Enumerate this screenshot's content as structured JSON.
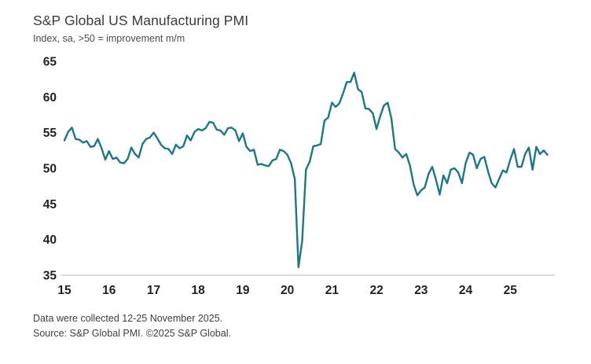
{
  "header": {
    "title": "S&P Global US Manufacturing PMI",
    "subtitle": "Index, sa, >50 = improvement m/m"
  },
  "footer": {
    "line1": "Data were collected 12-25 November 2025.",
    "line2": "Source: S&P Global PMI. ©2025 S&P Global."
  },
  "chart_data": {
    "type": "line",
    "title": "S&P Global US Manufacturing PMI",
    "subtitle": "Index, sa, >50 = improvement m/m",
    "x_start": "2015-01",
    "x_end": "2025-11",
    "x_tick_labels": [
      "15",
      "16",
      "17",
      "18",
      "19",
      "20",
      "21",
      "22",
      "23",
      "24",
      "25"
    ],
    "y_ticks": [
      35,
      40,
      45,
      50,
      55,
      60,
      65
    ],
    "ylim": [
      35,
      65
    ],
    "grid": false,
    "legend": "none",
    "line_color": "#1a7888",
    "axis_color": "#b9b9b9",
    "tick_label_color": "#222222",
    "series": [
      {
        "name": "US Manufacturing PMI (monthly, Jan 2015 - Nov 2025)",
        "values": [
          53.9,
          55.1,
          55.7,
          54.1,
          54.0,
          53.6,
          53.8,
          53.0,
          53.1,
          54.1,
          52.8,
          51.2,
          52.4,
          51.3,
          51.5,
          50.8,
          50.7,
          51.3,
          52.9,
          52.0,
          51.5,
          53.4,
          54.1,
          54.3,
          55.0,
          54.2,
          53.3,
          52.8,
          52.7,
          52.0,
          53.3,
          52.8,
          53.1,
          54.6,
          53.9,
          55.1,
          55.5,
          55.3,
          55.6,
          56.5,
          56.4,
          55.4,
          55.3,
          54.7,
          55.6,
          55.7,
          55.3,
          53.8,
          54.9,
          53.0,
          52.4,
          52.6,
          50.5,
          50.6,
          50.4,
          50.3,
          51.1,
          51.3,
          52.6,
          52.4,
          51.9,
          50.7,
          48.5,
          36.1,
          39.8,
          49.8,
          50.9,
          53.1,
          53.2,
          53.4,
          56.7,
          57.1,
          59.2,
          58.6,
          59.1,
          60.5,
          62.1,
          62.1,
          63.4,
          61.1,
          60.7,
          58.4,
          58.3,
          57.7,
          55.5,
          57.3,
          58.8,
          59.2,
          57.0,
          52.7,
          52.2,
          51.5,
          52.0,
          50.4,
          47.7,
          46.2,
          46.9,
          47.3,
          49.2,
          50.2,
          48.4,
          46.3,
          49.0,
          47.9,
          49.8,
          50.0,
          49.4,
          47.9,
          50.7,
          52.2,
          51.9,
          50.0,
          51.3,
          51.6,
          49.6,
          47.9,
          47.3,
          48.5,
          49.7,
          49.4,
          51.2,
          52.7,
          50.2,
          50.2,
          52.0,
          52.9,
          49.8,
          53.0,
          52.0,
          52.5,
          51.9
        ]
      }
    ]
  }
}
